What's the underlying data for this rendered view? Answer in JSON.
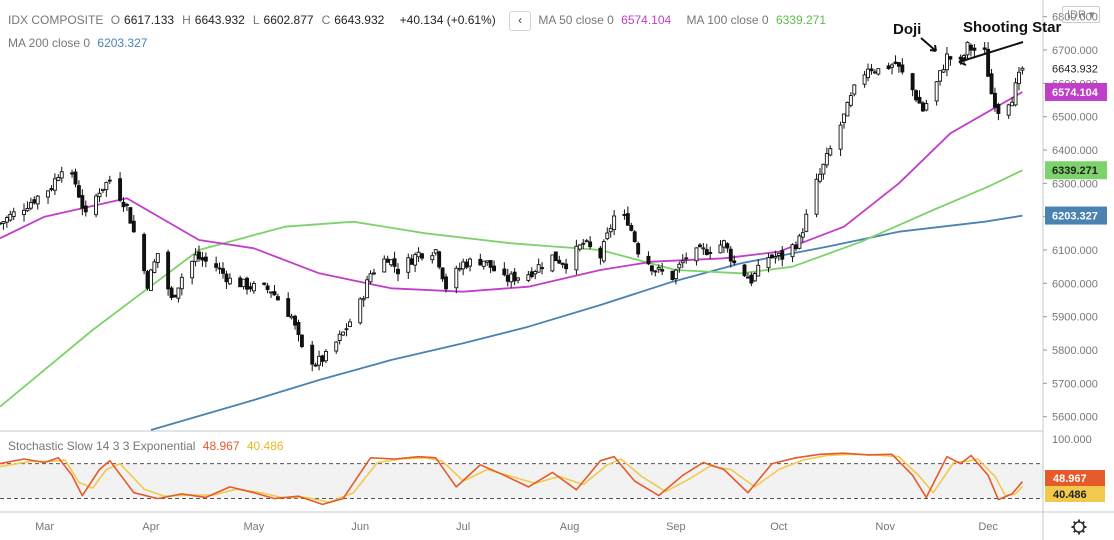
{
  "header": {
    "symbol": "IDX COMPOSITE",
    "ohlc": [
      {
        "label": "O",
        "value": "6617.133"
      },
      {
        "label": "H",
        "value": "6643.932"
      },
      {
        "label": "L",
        "value": "6602.877"
      },
      {
        "label": "C",
        "value": "6643.932"
      }
    ],
    "change": "+40.134 (+0.61%)",
    "currency": "IDR",
    "chevron": "‹",
    "indicators": [
      {
        "label": "MA 50 close 0",
        "value": "6574.104",
        "color": "#c13ec8"
      },
      {
        "label": "MA 100 close 0",
        "value": "6339.271",
        "color": "#7dd36b"
      },
      {
        "label": "MA 200 close 0",
        "value": "6203.327",
        "color": "#4a82b2"
      }
    ]
  },
  "annotations": [
    {
      "text": "Doji",
      "x": "2020-11-25",
      "y": 6745
    },
    {
      "text": "Shooting Star",
      "x": "2020-11-30",
      "y": 6735
    }
  ],
  "oscillator": {
    "label": "Stochastic Slow 14 3 3 Exponential",
    "k_value": "48.967",
    "d_value": "40.486",
    "k_color": "#e55a2a",
    "d_color": "#f2c94c",
    "upper_level": 80,
    "lower_level": 20,
    "y_ticks": [
      {
        "value": 100,
        "label": "100.000"
      }
    ],
    "badges": [
      {
        "value": 48.967,
        "label": "48.967",
        "color": "#e55a2a"
      },
      {
        "value": 40.486,
        "label": "40.486",
        "color": "#f2c94c",
        "text_color": "#222222"
      }
    ]
  },
  "chart_data": {
    "type": "candlestick",
    "x_range": [
      "2020-02-17",
      "2020-12-17"
    ],
    "ylim": [
      5560,
      6850
    ],
    "y_ticks": [
      {
        "value": 5600,
        "label": "5600.000"
      },
      {
        "value": 5700,
        "label": "5700.000"
      },
      {
        "value": 5800,
        "label": "5800.000"
      },
      {
        "value": 5900,
        "label": "5900.000"
      },
      {
        "value": 6000,
        "label": "6000.000"
      },
      {
        "value": 6100,
        "label": "6100.000"
      },
      {
        "value": 6200,
        "label": "6200.000"
      },
      {
        "value": 6300,
        "label": "6300.000"
      },
      {
        "value": 6400,
        "label": "6400.000"
      },
      {
        "value": 6500,
        "label": "6500.000"
      },
      {
        "value": 6600,
        "label": "6600.000"
      },
      {
        "value": 6700,
        "label": "6700.000"
      },
      {
        "value": 6800,
        "label": "6800.000"
      }
    ],
    "x_ticks": [
      {
        "date": "2020-03-01",
        "label": "Mar"
      },
      {
        "date": "2020-04-01",
        "label": "Apr"
      },
      {
        "date": "2020-05-01",
        "label": "May"
      },
      {
        "date": "2020-06-01",
        "label": "Jun"
      },
      {
        "date": "2020-07-01",
        "label": "Jul"
      },
      {
        "date": "2020-08-01",
        "label": "Aug"
      },
      {
        "date": "2020-09-01",
        "label": "Sep"
      },
      {
        "date": "2020-10-01",
        "label": "Oct"
      },
      {
        "date": "2020-11-01",
        "label": "Nov"
      },
      {
        "date": "2020-12-01",
        "label": "Dec"
      }
    ],
    "price_badges": [
      {
        "value": 6643.932,
        "label": "6643.932",
        "style": "plain"
      },
      {
        "value": 6574.104,
        "label": "6574.104",
        "color": "#c13ec8"
      },
      {
        "value": 6339.271,
        "label": "6339.271",
        "color": "#7dd36b",
        "text_color": "#222222"
      },
      {
        "value": 6203.327,
        "label": "6203.327",
        "color": "#4a82b2"
      }
    ],
    "close_keypoints": [
      [
        "2020-02-17",
        6180
      ],
      [
        "2020-02-24",
        6230
      ],
      [
        "2020-03-03",
        6290
      ],
      [
        "2020-03-06",
        6350
      ],
      [
        "2020-03-10",
        6300
      ],
      [
        "2020-03-13",
        6200
      ],
      [
        "2020-03-17",
        6280
      ],
      [
        "2020-03-20",
        6310
      ],
      [
        "2020-03-25",
        6230
      ],
      [
        "2020-03-31",
        6000
      ],
      [
        "2020-04-03",
        6090
      ],
      [
        "2020-04-07",
        5950
      ],
      [
        "2020-04-10",
        6020
      ],
      [
        "2020-04-14",
        6080
      ],
      [
        "2020-04-20",
        6050
      ],
      [
        "2020-04-24",
        6010
      ],
      [
        "2020-04-30",
        5990
      ],
      [
        "2020-05-06",
        5980
      ],
      [
        "2020-05-12",
        5900
      ],
      [
        "2020-05-15",
        5800
      ],
      [
        "2020-05-19",
        5760
      ],
      [
        "2020-05-22",
        5780
      ],
      [
        "2020-05-27",
        5850
      ],
      [
        "2020-06-01",
        5940
      ],
      [
        "2020-06-04",
        6030
      ],
      [
        "2020-06-09",
        6080
      ],
      [
        "2020-06-12",
        6040
      ],
      [
        "2020-06-18",
        6090
      ],
      [
        "2020-06-23",
        6100
      ],
      [
        "2020-06-26",
        5990
      ],
      [
        "2020-07-01",
        6060
      ],
      [
        "2020-07-07",
        6070
      ],
      [
        "2020-07-13",
        6010
      ],
      [
        "2020-07-20",
        6030
      ],
      [
        "2020-07-27",
        6080
      ],
      [
        "2020-07-31",
        6060
      ],
      [
        "2020-08-05",
        6120
      ],
      [
        "2020-08-10",
        6080
      ],
      [
        "2020-08-14",
        6200
      ],
      [
        "2020-08-18",
        6190
      ],
      [
        "2020-08-21",
        6100
      ],
      [
        "2020-08-26",
        6040
      ],
      [
        "2020-08-31",
        6020
      ],
      [
        "2020-09-04",
        6080
      ],
      [
        "2020-09-10",
        6100
      ],
      [
        "2020-09-15",
        6120
      ],
      [
        "2020-09-18",
        6060
      ],
      [
        "2020-09-23",
        6010
      ],
      [
        "2020-09-28",
        6080
      ],
      [
        "2020-10-02",
        6080
      ],
      [
        "2020-10-07",
        6130
      ],
      [
        "2020-10-12",
        6300
      ],
      [
        "2020-10-16",
        6400
      ],
      [
        "2020-10-20",
        6500
      ],
      [
        "2020-10-23",
        6580
      ],
      [
        "2020-10-27",
        6650
      ],
      [
        "2020-10-30",
        6640
      ],
      [
        "2020-11-04",
        6660
      ],
      [
        "2020-11-09",
        6580
      ],
      [
        "2020-11-12",
        6520
      ],
      [
        "2020-11-16",
        6600
      ],
      [
        "2020-11-19",
        6680
      ],
      [
        "2020-11-23",
        6660
      ],
      [
        "2020-11-25",
        6710
      ],
      [
        "2020-11-27",
        6700
      ],
      [
        "2020-11-30",
        6690
      ],
      [
        "2020-12-02",
        6570
      ],
      [
        "2020-12-04",
        6520
      ],
      [
        "2020-12-08",
        6560
      ],
      [
        "2020-12-10",
        6617
      ],
      [
        "2020-12-11",
        6644
      ]
    ],
    "ma50_keypoints": [
      [
        "2020-02-17",
        6135
      ],
      [
        "2020-03-01",
        6200
      ],
      [
        "2020-03-25",
        6255
      ],
      [
        "2020-04-15",
        6130
      ],
      [
        "2020-05-01",
        6105
      ],
      [
        "2020-05-20",
        6030
      ],
      [
        "2020-06-10",
        5985
      ],
      [
        "2020-07-01",
        5975
      ],
      [
        "2020-07-20",
        5990
      ],
      [
        "2020-08-10",
        6040
      ],
      [
        "2020-08-25",
        6065
      ],
      [
        "2020-09-15",
        6075
      ],
      [
        "2020-10-01",
        6095
      ],
      [
        "2020-10-20",
        6170
      ],
      [
        "2020-11-05",
        6300
      ],
      [
        "2020-11-20",
        6450
      ],
      [
        "2020-12-01",
        6515
      ],
      [
        "2020-12-11",
        6574
      ]
    ],
    "ma100_keypoints": [
      [
        "2020-02-17",
        5630
      ],
      [
        "2020-03-15",
        5860
      ],
      [
        "2020-04-15",
        6100
      ],
      [
        "2020-05-10",
        6170
      ],
      [
        "2020-05-30",
        6185
      ],
      [
        "2020-06-20",
        6150
      ],
      [
        "2020-07-15",
        6120
      ],
      [
        "2020-08-10",
        6100
      ],
      [
        "2020-09-01",
        6040
      ],
      [
        "2020-09-20",
        6030
      ],
      [
        "2020-10-05",
        6050
      ],
      [
        "2020-10-25",
        6125
      ],
      [
        "2020-11-15",
        6220
      ],
      [
        "2020-12-01",
        6290
      ],
      [
        "2020-12-11",
        6339
      ]
    ],
    "ma200_keypoints": [
      [
        "2020-04-01",
        5560
      ],
      [
        "2020-05-01",
        5650
      ],
      [
        "2020-05-20",
        5710
      ],
      [
        "2020-06-10",
        5770
      ],
      [
        "2020-07-01",
        5820
      ],
      [
        "2020-07-20",
        5870
      ],
      [
        "2020-08-10",
        5935
      ],
      [
        "2020-08-31",
        6005
      ],
      [
        "2020-09-20",
        6060
      ],
      [
        "2020-10-15",
        6110
      ],
      [
        "2020-11-05",
        6155
      ],
      [
        "2020-11-30",
        6185
      ],
      [
        "2020-12-11",
        6203
      ]
    ],
    "stoch_k_keypoints": [
      [
        "2020-02-17",
        80
      ],
      [
        "2020-02-24",
        88
      ],
      [
        "2020-03-01",
        82
      ],
      [
        "2020-03-05",
        90
      ],
      [
        "2020-03-09",
        60
      ],
      [
        "2020-03-12",
        25
      ],
      [
        "2020-03-17",
        70
      ],
      [
        "2020-03-20",
        85
      ],
      [
        "2020-03-27",
        30
      ],
      [
        "2020-04-03",
        20
      ],
      [
        "2020-04-10",
        28
      ],
      [
        "2020-04-17",
        22
      ],
      [
        "2020-04-24",
        40
      ],
      [
        "2020-05-01",
        30
      ],
      [
        "2020-05-07",
        20
      ],
      [
        "2020-05-14",
        24
      ],
      [
        "2020-05-21",
        10
      ],
      [
        "2020-05-27",
        20
      ],
      [
        "2020-06-04",
        90
      ],
      [
        "2020-06-11",
        88
      ],
      [
        "2020-06-18",
        92
      ],
      [
        "2020-06-23",
        90
      ],
      [
        "2020-06-29",
        40
      ],
      [
        "2020-07-06",
        78
      ],
      [
        "2020-07-13",
        60
      ],
      [
        "2020-07-20",
        40
      ],
      [
        "2020-07-27",
        65
      ],
      [
        "2020-08-03",
        35
      ],
      [
        "2020-08-10",
        85
      ],
      [
        "2020-08-14",
        92
      ],
      [
        "2020-08-20",
        50
      ],
      [
        "2020-08-27",
        25
      ],
      [
        "2020-09-03",
        60
      ],
      [
        "2020-09-09",
        82
      ],
      [
        "2020-09-15",
        70
      ],
      [
        "2020-09-22",
        30
      ],
      [
        "2020-09-29",
        80
      ],
      [
        "2020-10-06",
        90
      ],
      [
        "2020-10-13",
        96
      ],
      [
        "2020-10-20",
        98
      ],
      [
        "2020-10-27",
        95
      ],
      [
        "2020-11-03",
        96
      ],
      [
        "2020-11-09",
        60
      ],
      [
        "2020-11-13",
        22
      ],
      [
        "2020-11-19",
        92
      ],
      [
        "2020-11-23",
        80
      ],
      [
        "2020-11-26",
        94
      ],
      [
        "2020-12-01",
        60
      ],
      [
        "2020-12-04",
        18
      ],
      [
        "2020-12-08",
        28
      ],
      [
        "2020-12-11",
        48.967
      ]
    ],
    "stoch_d_keypoints": [
      [
        "2020-02-17",
        75
      ],
      [
        "2020-02-26",
        84
      ],
      [
        "2020-03-03",
        84
      ],
      [
        "2020-03-07",
        86
      ],
      [
        "2020-03-11",
        48
      ],
      [
        "2020-03-15",
        38
      ],
      [
        "2020-03-19",
        70
      ],
      [
        "2020-03-23",
        80
      ],
      [
        "2020-03-30",
        36
      ],
      [
        "2020-04-05",
        24
      ],
      [
        "2020-04-12",
        26
      ],
      [
        "2020-04-19",
        26
      ],
      [
        "2020-04-26",
        36
      ],
      [
        "2020-05-03",
        30
      ],
      [
        "2020-05-09",
        22
      ],
      [
        "2020-05-16",
        22
      ],
      [
        "2020-05-23",
        14
      ],
      [
        "2020-05-30",
        30
      ],
      [
        "2020-06-06",
        82
      ],
      [
        "2020-06-13",
        88
      ],
      [
        "2020-06-20",
        90
      ],
      [
        "2020-06-25",
        84
      ],
      [
        "2020-07-01",
        50
      ],
      [
        "2020-07-08",
        70
      ],
      [
        "2020-07-15",
        58
      ],
      [
        "2020-07-22",
        46
      ],
      [
        "2020-07-29",
        58
      ],
      [
        "2020-08-05",
        44
      ],
      [
        "2020-08-12",
        78
      ],
      [
        "2020-08-16",
        88
      ],
      [
        "2020-08-22",
        58
      ],
      [
        "2020-08-29",
        32
      ],
      [
        "2020-09-05",
        54
      ],
      [
        "2020-09-11",
        76
      ],
      [
        "2020-09-17",
        70
      ],
      [
        "2020-09-24",
        40
      ],
      [
        "2020-10-01",
        70
      ],
      [
        "2020-10-08",
        86
      ],
      [
        "2020-10-15",
        94
      ],
      [
        "2020-10-22",
        96
      ],
      [
        "2020-10-29",
        95
      ],
      [
        "2020-11-05",
        92
      ],
      [
        "2020-11-11",
        58
      ],
      [
        "2020-11-15",
        30
      ],
      [
        "2020-11-21",
        82
      ],
      [
        "2020-11-25",
        84
      ],
      [
        "2020-11-28",
        88
      ],
      [
        "2020-12-03",
        58
      ],
      [
        "2020-12-06",
        25
      ],
      [
        "2020-12-09",
        28
      ],
      [
        "2020-12-11",
        40.486
      ]
    ]
  }
}
